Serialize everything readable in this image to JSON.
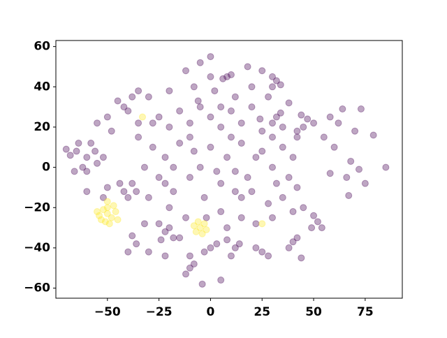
{
  "chart_data": {
    "type": "scatter",
    "xlim": [
      -75,
      93
    ],
    "ylim": [
      -65,
      63
    ],
    "xticks": [
      {
        "value": -50,
        "label": "−50"
      },
      {
        "value": -25,
        "label": "−25"
      },
      0,
      25,
      50,
      75
    ],
    "yticks": [
      {
        "value": -60,
        "label": "−60"
      },
      {
        "value": -40,
        "label": "−40"
      },
      {
        "value": -20,
        "label": "−20"
      },
      0,
      20,
      40,
      60
    ],
    "series": [
      {
        "color": "#440154",
        "x": [
          -25,
          -20,
          -15,
          -10,
          -5,
          0,
          5,
          10,
          15,
          20,
          25,
          30,
          35,
          -28,
          -22,
          -15,
          -8,
          0,
          8,
          15,
          22,
          30,
          38,
          -25,
          -18,
          -10,
          -3,
          5,
          12,
          20,
          28,
          35,
          42,
          -20,
          -12,
          5,
          15,
          22,
          30,
          -30,
          -20,
          -8,
          2,
          12,
          20,
          -12,
          -5,
          0,
          18,
          25,
          -35,
          -32,
          -30,
          40,
          42,
          45,
          38,
          -18,
          -5,
          10,
          18,
          25,
          -2,
          8,
          -15,
          -25,
          0,
          28,
          40,
          -10,
          3,
          -28,
          15,
          32,
          -6,
          24,
          12,
          -22,
          35,
          5,
          -60,
          -65,
          -55,
          -58,
          -62,
          -68,
          -56,
          -52,
          -60,
          -64,
          -70,
          -66,
          -42,
          -38,
          -45,
          -40,
          -35,
          -42,
          -38,
          -44,
          -36,
          -40,
          -22,
          -18,
          -24,
          -20,
          -38,
          -36,
          -40,
          -10,
          -12,
          -8,
          -4,
          -10,
          0,
          -3,
          3,
          5,
          12,
          10,
          14,
          8,
          25,
          22,
          28,
          40,
          38,
          42,
          44,
          52,
          50,
          54,
          49,
          47,
          44,
          50,
          45,
          42,
          32,
          30,
          34,
          30,
          32,
          34,
          30,
          8,
          10,
          6,
          -35,
          -32,
          -50,
          -48,
          -22,
          -30,
          -55,
          -52,
          -50,
          -60,
          64,
          73,
          79,
          85,
          70,
          60,
          68,
          72,
          75,
          66,
          67,
          58,
          62,
          55,
          58
        ],
        "values": [
          25,
          20,
          28,
          22,
          30,
          25,
          20,
          28,
          22,
          30,
          18,
          15,
          10,
          10,
          5,
          12,
          8,
          10,
          5,
          12,
          5,
          0,
          -5,
          -5,
          -12,
          -5,
          -15,
          -8,
          -2,
          -12,
          -18,
          -15,
          -10,
          -20,
          -25,
          -22,
          -25,
          -28,
          -25,
          35,
          38,
          40,
          38,
          35,
          40,
          48,
          52,
          55,
          50,
          48,
          15,
          0,
          -15,
          5,
          15,
          -20,
          32,
          0,
          0,
          15,
          -5,
          8,
          -25,
          -30,
          -35,
          -28,
          45,
          35,
          -22,
          15,
          -2,
          22,
          -15,
          -8,
          33,
          24,
          -12,
          -8,
          20,
          30,
          5,
          8,
          2,
          12,
          0,
          6,
          8,
          5,
          -2,
          12,
          9,
          -2,
          30,
          35,
          33,
          28,
          38,
          -12,
          -8,
          -8,
          -12,
          -15,
          -32,
          -35,
          -36,
          -30,
          -34,
          -38,
          -42,
          -50,
          -53,
          -48,
          -58,
          -44,
          -40,
          -42,
          -38,
          -56,
          -40,
          -44,
          -38,
          -36,
          -42,
          -40,
          -44,
          -37,
          -40,
          -35,
          -45,
          -27,
          -24,
          -30,
          -30,
          24,
          26,
          22,
          20,
          18,
          43,
          45,
          41,
          40,
          25,
          27,
          22,
          45,
          46,
          44,
          22,
          -28,
          25,
          18,
          -44,
          -42,
          22,
          -15,
          -10,
          -12,
          29,
          29,
          16,
          0,
          18,
          10,
          3,
          -1,
          -8,
          -5,
          -14,
          -3,
          22,
          15,
          25
        ]
      },
      {
        "color": "#fde725",
        "x": [
          -50,
          -52,
          -48,
          -46,
          -54,
          -50,
          -51,
          -47,
          -53,
          -49,
          -45,
          -55,
          -5,
          -3,
          -7,
          -4,
          -6,
          -2,
          -8,
          -33,
          25,
          -50
        ],
        "values": [
          -23,
          -21,
          -25,
          -22,
          -24,
          -20,
          -27,
          -19,
          -26,
          -28,
          -26,
          -22,
          -30,
          -28,
          -32,
          -33,
          -27,
          -31,
          -29,
          25,
          -28,
          -17
        ]
      }
    ]
  }
}
